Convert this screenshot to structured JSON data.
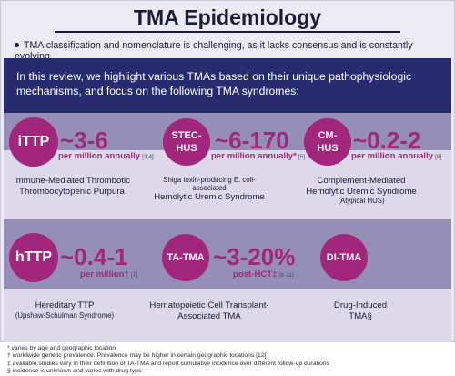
{
  "title": "TMA Epidemiology",
  "bullet": "TMA classification and nomenclature is challenging, as it lacks consensus and is constantly evolving.",
  "banner": "In this review, we highlight various TMAs based on their unique pathophysiologic mechanisms, and focus on the following TMA syndromes:",
  "syndromes": [
    {
      "abbr": "iTTP",
      "value": "~3-6",
      "unit": "per million annually",
      "ref": "[3,4]",
      "desc_small": "",
      "desc_main": "Immune-Mediated Thrombotic Thrombocytopenic Purpura",
      "desc_note": ""
    },
    {
      "abbr": "STEC-HUS",
      "value": "~6-170",
      "unit": "per million annually*",
      "ref": "[5]",
      "desc_small": "Shiga toxin-producing E. coli-associated",
      "desc_main": "Hemolytic Uremic Syndrome",
      "desc_note": ""
    },
    {
      "abbr": "CM-HUS",
      "value": "~0.2-2",
      "unit": "per million annually",
      "ref": "[6]",
      "desc_small": "",
      "desc_main": "Complement-Mediated Hemolytic Uremic Syndrome",
      "desc_note": "(Atypical HUS)"
    },
    {
      "abbr": "hTTP",
      "value": "~0.4-1",
      "unit": "per million†",
      "ref": "[7]",
      "desc_small": "",
      "desc_main": "Hereditary TTP",
      "desc_note": "(Upshaw-Schulman Syndrome)"
    },
    {
      "abbr": "TA-TMA",
      "value": "~3-20%",
      "unit": "post-HCT‡",
      "ref": "[8-11]",
      "desc_small": "",
      "desc_main": "Hematopoietic Cell Transplant-Associated TMA",
      "desc_note": ""
    },
    {
      "abbr": "DI-TMA",
      "value": "",
      "unit": "",
      "ref": "",
      "desc_small": "",
      "desc_main": "Drug-Induced TMA§",
      "desc_note": ""
    }
  ],
  "footnotes": [
    "* varies by age and geographic location",
    "† worldwide genetic prevalence. Prevalence may be higher in certain geographic locations [12]",
    "‡ available studies vary in their definition of TA-TMA and report cumulative incidence over different follow-up durations",
    "§ incidence is unknown and varies with drug type"
  ],
  "colors": {
    "navy": "#272c6e",
    "magenta": "#a3267d",
    "band_dark": "#958fb8",
    "band_light": "#ddd9ea"
  }
}
